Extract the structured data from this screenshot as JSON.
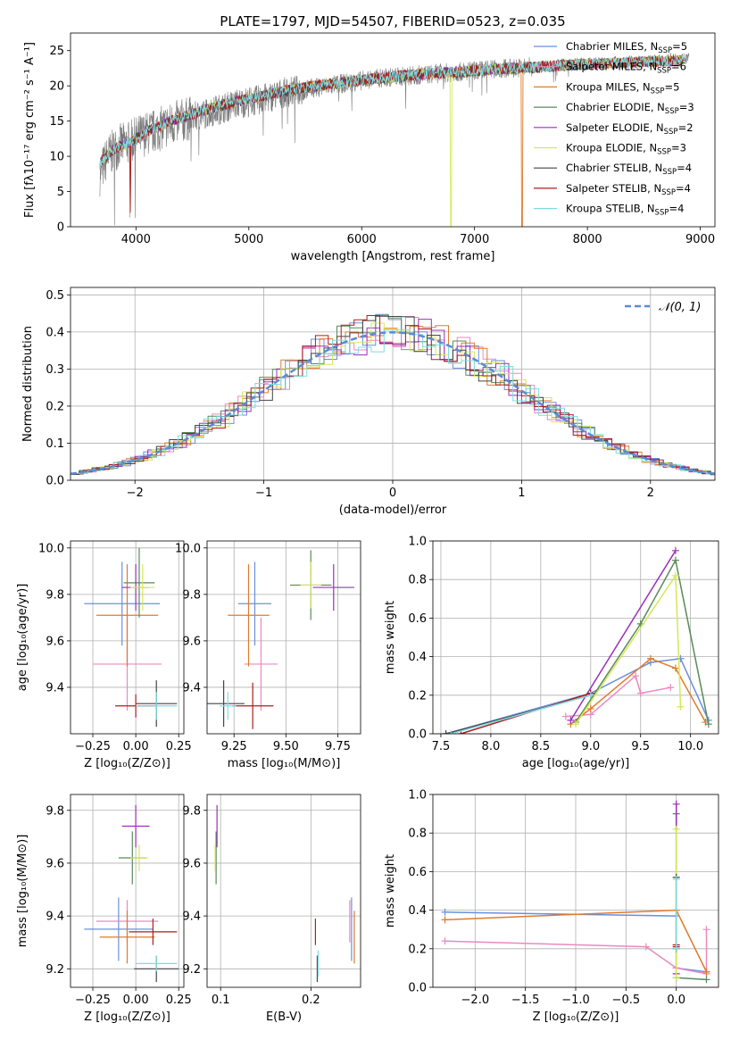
{
  "title": "PLATE=1797, MJD=54507, FIBERID=0523, z=0.035",
  "colors": {
    "Chabrier MILES": "#6a8fe0",
    "Salpeter MILES": "#e88ac0",
    "Kroupa MILES": "#e07b2a",
    "Chabrier ELODIE": "#5a8a5a",
    "Salpeter ELODIE": "#9b30b8",
    "Kroupa ELODIE": "#d4e857",
    "Chabrier STELIB": "#444444",
    "Salpeter STELIB": "#b01c1c",
    "Kroupa STELIB": "#7fdde0",
    "gaussian": "#5b8ad6"
  },
  "legend_entries": [
    {
      "key": "Chabrier MILES",
      "text": "Chabrier MILES, N",
      "sub": "SSP",
      "post": "=5"
    },
    {
      "key": "Salpeter MILES",
      "text": "Salpeter MILES, N",
      "sub": "SSP",
      "post": "=6"
    },
    {
      "key": "Kroupa MILES",
      "text": "Kroupa MILES, N",
      "sub": "SSP",
      "post": "=5"
    },
    {
      "key": "Chabrier ELODIE",
      "text": "Chabrier ELODIE, N",
      "sub": "SSP",
      "post": "=3"
    },
    {
      "key": "Salpeter ELODIE",
      "text": "Salpeter ELODIE, N",
      "sub": "SSP",
      "post": "=2"
    },
    {
      "key": "Kroupa ELODIE",
      "text": "Kroupa ELODIE, N",
      "sub": "SSP",
      "post": "=3"
    },
    {
      "key": "Chabrier STELIB",
      "text": "Chabrier STELIB, N",
      "sub": "SSP",
      "post": "=4"
    },
    {
      "key": "Salpeter STELIB",
      "text": "Salpeter STELIB, N",
      "sub": "SSP",
      "post": "=4"
    },
    {
      "key": "Kroupa STELIB",
      "text": "Kroupa STELIB, N",
      "sub": "SSP",
      "post": "=4"
    }
  ],
  "chart_data": [
    {
      "type": "line",
      "panel": "spectrum",
      "xlabel": "wavelength [Angstrom, rest frame]",
      "ylabel": "Flux [fλ10⁻¹⁷ erg cm⁻² s⁻¹ A⁻¹]",
      "xlim": [
        3420,
        9130
      ],
      "ylim": [
        0,
        27.5
      ],
      "xticks": [
        4000,
        5000,
        6000,
        7000,
        8000,
        9000
      ],
      "yticks": [
        0,
        5,
        10,
        15,
        20,
        25
      ],
      "x": [
        3680,
        3750,
        3850,
        3950,
        4050,
        4150,
        4300,
        4500,
        4700,
        4900,
        5100,
        5300,
        5500,
        5700,
        5900,
        6100,
        6300,
        6500,
        6700,
        6900,
        7100,
        7300,
        7500,
        7700,
        7900,
        8100,
        8300,
        8500,
        8700,
        8900
      ],
      "y": [
        7.5,
        10.0,
        11.5,
        12.0,
        13.0,
        13.5,
        14.5,
        15.5,
        16.5,
        17.5,
        18.0,
        19.0,
        19.5,
        20.0,
        20.5,
        21.0,
        21.3,
        21.5,
        21.8,
        22.0,
        22.3,
        22.5,
        22.7,
        23.0,
        23.2,
        23.3,
        23.5,
        23.5,
        23.8,
        24.0
      ],
      "model_x": [
        3680,
        3800,
        3950,
        4100,
        4300,
        4500,
        4700,
        4900,
        5100,
        5300,
        5500,
        5700,
        5900,
        6100,
        6300,
        6500,
        6700,
        6900,
        7100,
        7300,
        7500,
        7700,
        7900,
        8100,
        8300,
        8500,
        8700,
        8850
      ],
      "model_y": [
        9.0,
        11.0,
        12.0,
        13.5,
        15.0,
        16.0,
        17.0,
        17.8,
        18.5,
        19.2,
        19.8,
        20.2,
        20.6,
        21.0,
        21.3,
        21.6,
        21.8,
        22.0,
        22.3,
        22.5,
        22.6,
        22.8,
        23.0,
        23.1,
        23.2,
        23.4,
        23.5,
        23.6
      ]
    },
    {
      "type": "line",
      "panel": "residual_histogram",
      "xlabel": "(data-model)/error",
      "ylabel": "Normed distribution",
      "xlim": [
        -2.5,
        2.5
      ],
      "ylim": [
        0,
        0.52
      ],
      "xticks": [
        -2,
        -1,
        0,
        1,
        2
      ],
      "yticks": [
        0.0,
        0.1,
        0.2,
        0.3,
        0.4,
        0.5
      ],
      "bin_width": 0.1,
      "gaussian_label": "𝒩(0, 1)"
    },
    {
      "type": "scatter",
      "panel": "age_vs_Z",
      "xlabel": "Z [log₁₀(Z/Z⊙)]",
      "ylabel": "age  [log₁₀(age/yr)]",
      "xlim": [
        -0.38,
        0.28
      ],
      "ylim": [
        9.2,
        10.03
      ],
      "xticks": [
        -0.25,
        0.0,
        0.25
      ],
      "yticks": [
        9.4,
        9.6,
        9.8,
        10.0
      ],
      "points": [
        {
          "series": "Chabrier MILES",
          "x": -0.08,
          "y": 9.76,
          "xerr": 0.22,
          "yerr": 0.18
        },
        {
          "series": "Salpeter MILES",
          "x": -0.05,
          "y": 9.5,
          "xerr": 0.2,
          "yerr": 0.2
        },
        {
          "series": "Kroupa MILES",
          "x": -0.05,
          "y": 9.71,
          "xerr": 0.18,
          "yerr": 0.22
        },
        {
          "series": "Chabrier ELODIE",
          "x": 0.02,
          "y": 9.85,
          "xerr": 0.09,
          "yerr": 0.15
        },
        {
          "series": "Salpeter ELODIE",
          "x": 0.0,
          "y": 9.83,
          "xerr": 0.08,
          "yerr": 0.1
        },
        {
          "series": "Kroupa ELODIE",
          "x": 0.04,
          "y": 9.83,
          "xerr": 0.07,
          "yerr": 0.1
        },
        {
          "series": "Chabrier STELIB",
          "x": 0.12,
          "y": 9.33,
          "xerr": 0.12,
          "yerr": 0.1
        },
        {
          "series": "Salpeter STELIB",
          "x": 0.0,
          "y": 9.32,
          "xerr": 0.12,
          "yerr": 0.05
        },
        {
          "series": "Kroupa STELIB",
          "x": 0.12,
          "y": 9.32,
          "xerr": 0.12,
          "yerr": 0.06
        }
      ]
    },
    {
      "type": "scatter",
      "panel": "age_vs_mass",
      "xlabel": "mass [log₁₀(M/M⊙)]",
      "xlim": [
        9.12,
        9.86
      ],
      "ylim": [
        9.2,
        10.03
      ],
      "xticks": [
        9.25,
        9.5,
        9.75
      ],
      "yticks": [
        9.4,
        9.6,
        9.8,
        10.0
      ],
      "points": [
        {
          "series": "Chabrier MILES",
          "x": 9.35,
          "y": 9.76,
          "xerr": 0.08,
          "yerr": 0.18
        },
        {
          "series": "Salpeter MILES",
          "x": 9.38,
          "y": 9.5,
          "xerr": 0.08,
          "yerr": 0.2
        },
        {
          "series": "Kroupa MILES",
          "x": 9.32,
          "y": 9.71,
          "xerr": 0.1,
          "yerr": 0.22
        },
        {
          "series": "Chabrier ELODIE",
          "x": 9.62,
          "y": 9.84,
          "xerr": 0.1,
          "yerr": 0.15
        },
        {
          "series": "Salpeter ELODIE",
          "x": 9.73,
          "y": 9.83,
          "xerr": 0.1,
          "yerr": 0.1
        },
        {
          "series": "Kroupa ELODIE",
          "x": 9.62,
          "y": 9.84,
          "xerr": 0.05,
          "yerr": 0.1
        },
        {
          "series": "Chabrier STELIB",
          "x": 9.2,
          "y": 9.33,
          "xerr": 0.1,
          "yerr": 0.1
        },
        {
          "series": "Salpeter STELIB",
          "x": 9.34,
          "y": 9.32,
          "xerr": 0.1,
          "yerr": 0.1
        },
        {
          "series": "Kroupa STELIB",
          "x": 9.22,
          "y": 9.32,
          "xerr": 0.04,
          "yerr": 0.06
        }
      ]
    },
    {
      "type": "line",
      "panel": "mass_weight_vs_age",
      "xlabel": "age  [log₁₀(age/yr)]",
      "ylabel": "mass weight",
      "xlim": [
        7.42,
        10.28
      ],
      "ylim": [
        0,
        1
      ],
      "xticks": [
        7.5,
        8.0,
        8.5,
        9.0,
        9.5,
        10.0
      ],
      "yticks": [
        0.0,
        0.2,
        0.4,
        0.6,
        0.8,
        1.0
      ],
      "series": [
        {
          "name": "Chabrier MILES",
          "x": [
            7.55,
            9.0,
            9.6,
            9.9,
            10.18
          ],
          "y": [
            0.0,
            0.21,
            0.37,
            0.39,
            0.07
          ]
        },
        {
          "name": "Salpeter MILES",
          "x": [
            8.75,
            9.0,
            9.45,
            9.5,
            9.8
          ],
          "y": [
            0.09,
            0.1,
            0.3,
            0.21,
            0.24
          ]
        },
        {
          "name": "Kroupa MILES",
          "x": [
            8.8,
            9.0,
            9.6,
            9.85,
            10.15
          ],
          "y": [
            0.05,
            0.13,
            0.39,
            0.34,
            0.06
          ]
        },
        {
          "name": "Chabrier ELODIE",
          "x": [
            8.85,
            9.5,
            9.85,
            10.18
          ],
          "y": [
            0.06,
            0.57,
            0.9,
            0.05
          ]
        },
        {
          "name": "Salpeter ELODIE",
          "x": [
            8.8,
            9.85
          ],
          "y": [
            0.07,
            0.95
          ]
        },
        {
          "name": "Kroupa ELODIE",
          "x": [
            8.85,
            9.85,
            9.9
          ],
          "y": [
            0.05,
            0.82,
            0.14
          ]
        },
        {
          "name": "Chabrier STELIB",
          "x": [
            7.55,
            9.0
          ],
          "y": [
            0.0,
            0.2
          ]
        },
        {
          "name": "Salpeter STELIB",
          "x": [
            7.7,
            9.0
          ],
          "y": [
            0.0,
            0.21
          ]
        },
        {
          "name": "Kroupa STELIB",
          "x": [
            7.6,
            9.0
          ],
          "y": [
            0.0,
            0.2
          ]
        }
      ]
    },
    {
      "type": "scatter",
      "panel": "mass_vs_Z",
      "xlabel": "Z [log₁₀(Z/Z⊙)]",
      "ylabel": "mass [log₁₀(M/M⊙)]",
      "xlim": [
        -0.38,
        0.28
      ],
      "ylim": [
        9.13,
        9.86
      ],
      "xticks": [
        -0.25,
        0.0,
        0.25
      ],
      "yticks": [
        9.2,
        9.4,
        9.6,
        9.8
      ],
      "points": [
        {
          "series": "Chabrier MILES",
          "x": -0.1,
          "y": 9.35,
          "xerr": 0.2,
          "yerr": 0.12
        },
        {
          "series": "Salpeter MILES",
          "x": -0.05,
          "y": 9.38,
          "xerr": 0.18,
          "yerr": 0.08
        },
        {
          "series": "Kroupa MILES",
          "x": -0.05,
          "y": 9.32,
          "xerr": 0.16,
          "yerr": 0.1
        },
        {
          "series": "Chabrier ELODIE",
          "x": -0.02,
          "y": 9.62,
          "xerr": 0.08,
          "yerr": 0.1
        },
        {
          "series": "Salpeter ELODIE",
          "x": 0.0,
          "y": 9.74,
          "xerr": 0.08,
          "yerr": 0.08
        },
        {
          "series": "Kroupa ELODIE",
          "x": 0.02,
          "y": 9.62,
          "xerr": 0.05,
          "yerr": 0.05
        },
        {
          "series": "Chabrier STELIB",
          "x": 0.12,
          "y": 9.2,
          "xerr": 0.13,
          "yerr": 0.05
        },
        {
          "series": "Salpeter STELIB",
          "x": 0.1,
          "y": 9.34,
          "xerr": 0.14,
          "yerr": 0.05
        },
        {
          "series": "Kroupa STELIB",
          "x": 0.12,
          "y": 9.22,
          "xerr": 0.12,
          "yerr": 0.03
        }
      ]
    },
    {
      "type": "scatter",
      "panel": "mass_vs_ebv",
      "xlabel": "E(B-V)",
      "xlim": [
        0.085,
        0.255
      ],
      "ylim": [
        9.13,
        9.86
      ],
      "xticks": [
        0.1,
        0.2
      ],
      "yticks": [
        9.2,
        9.4,
        9.6,
        9.8
      ],
      "points": [
        {
          "series": "Chabrier MILES",
          "x": 0.245,
          "y": 9.35,
          "xerr": 0,
          "yerr": 0.12
        },
        {
          "series": "Salpeter MILES",
          "x": 0.243,
          "y": 9.38,
          "xerr": 0,
          "yerr": 0.08
        },
        {
          "series": "Kroupa MILES",
          "x": 0.248,
          "y": 9.32,
          "xerr": 0,
          "yerr": 0.1
        },
        {
          "series": "Chabrier ELODIE",
          "x": 0.095,
          "y": 9.62,
          "xerr": 0,
          "yerr": 0.1
        },
        {
          "series": "Salpeter ELODIE",
          "x": 0.096,
          "y": 9.74,
          "xerr": 0,
          "yerr": 0.08
        },
        {
          "series": "Kroupa ELODIE",
          "x": 0.094,
          "y": 9.62,
          "xerr": 0,
          "yerr": 0.05
        },
        {
          "series": "Chabrier STELIB",
          "x": 0.207,
          "y": 9.2,
          "xerr": 0,
          "yerr": 0.05
        },
        {
          "series": "Salpeter STELIB",
          "x": 0.205,
          "y": 9.34,
          "xerr": 0,
          "yerr": 0.05
        },
        {
          "series": "Kroupa STELIB",
          "x": 0.208,
          "y": 9.22,
          "xerr": 0,
          "yerr": 0.05
        }
      ]
    },
    {
      "type": "line",
      "panel": "mass_weight_vs_Z",
      "xlabel": "Z [log₁₀(Z/Z⊙)]",
      "ylabel": "mass weight",
      "xlim": [
        -2.42,
        0.42
      ],
      "ylim": [
        0,
        1
      ],
      "xticks": [
        -2.0,
        -1.5,
        -1.0,
        -0.5,
        0.0
      ],
      "yticks": [
        0.0,
        0.2,
        0.4,
        0.6,
        0.8,
        1.0
      ],
      "series": [
        {
          "name": "Chabrier MILES",
          "x": [
            -2.3,
            0.0,
            0.0,
            0.3
          ],
          "y": [
            0.39,
            0.37,
            0.1,
            0.08
          ]
        },
        {
          "name": "Salpeter MILES",
          "x": [
            -2.3,
            -0.3,
            0.0,
            0.3,
            0.3
          ],
          "y": [
            0.24,
            0.21,
            0.1,
            0.07,
            0.3
          ]
        },
        {
          "name": "Kroupa MILES",
          "x": [
            -2.3,
            0.0,
            0.3
          ],
          "y": [
            0.35,
            0.4,
            0.08
          ]
        },
        {
          "name": "Chabrier ELODIE",
          "x": [
            0.0,
            0.0,
            0.3
          ],
          "y": [
            0.9,
            0.05,
            0.04
          ]
        },
        {
          "name": "Salpeter ELODIE",
          "x": [
            0.0,
            0.0
          ],
          "y": [
            0.95,
            0.07
          ]
        },
        {
          "name": "Kroupa ELODIE",
          "x": [
            0.0,
            0.0
          ],
          "y": [
            0.82,
            0.05
          ]
        },
        {
          "name": "Chabrier STELIB",
          "x": [
            0.0,
            0.0
          ],
          "y": [
            0.57,
            0.2
          ]
        },
        {
          "name": "Salpeter STELIB",
          "x": [
            0.0,
            0.0
          ],
          "y": [
            0.22,
            0.21
          ]
        },
        {
          "name": "Kroupa STELIB",
          "x": [
            0.0,
            0.0
          ],
          "y": [
            0.56,
            0.2
          ]
        }
      ]
    }
  ]
}
